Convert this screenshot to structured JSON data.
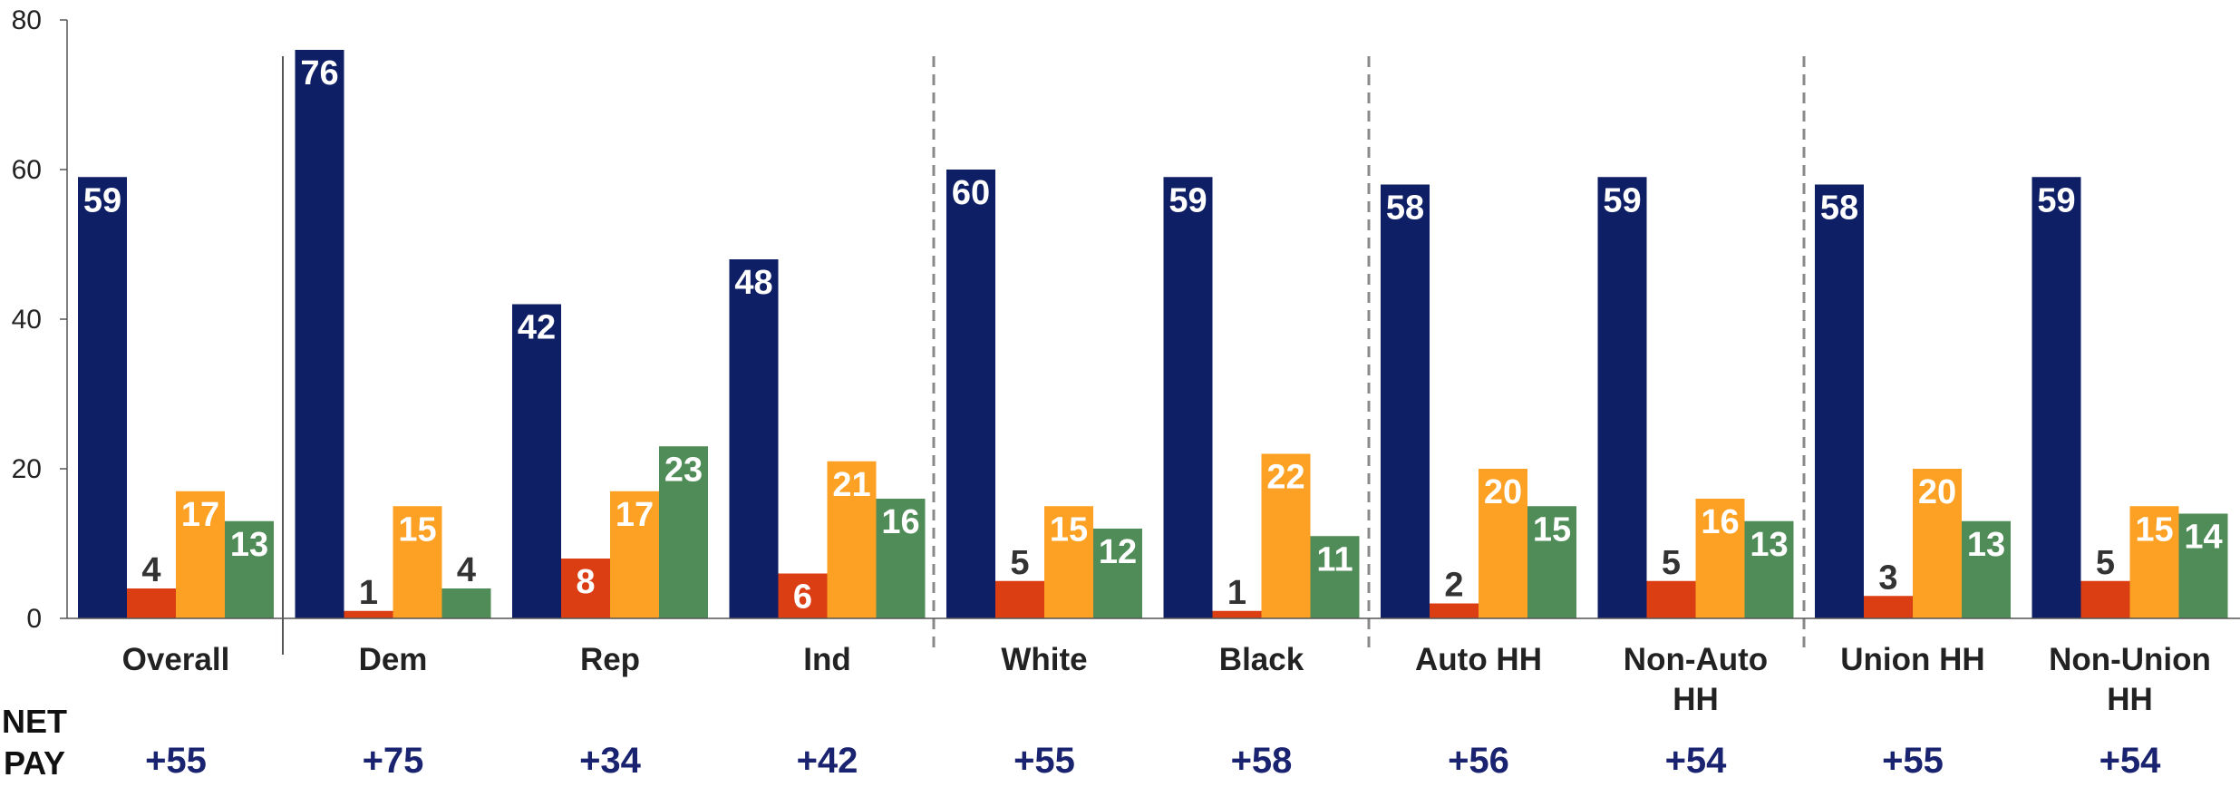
{
  "chart_data": {
    "type": "bar",
    "ylim": [
      0,
      80
    ],
    "yticks": [
      "0",
      "20",
      "40",
      "60",
      "80"
    ],
    "categories": [
      [
        "Overall"
      ],
      [
        "Dem"
      ],
      [
        "Rep"
      ],
      [
        "Ind"
      ],
      [
        "White"
      ],
      [
        "Black"
      ],
      [
        "Auto HH"
      ],
      [
        "Non-Auto",
        "HH"
      ],
      [
        "Union HH"
      ],
      [
        "Non-Union",
        "HH"
      ]
    ],
    "series": [
      {
        "color": "#0f1f66",
        "label_color": "#ffffff",
        "values": [
          59,
          76,
          42,
          48,
          60,
          59,
          58,
          59,
          58,
          59
        ]
      },
      {
        "color": "#dc3e14",
        "label_color": "#ffffff",
        "values": [
          4,
          1,
          8,
          6,
          5,
          1,
          2,
          5,
          3,
          5
        ]
      },
      {
        "color": "#fda124",
        "label_color": "#ffffff",
        "values": [
          17,
          15,
          17,
          21,
          15,
          22,
          20,
          16,
          20,
          15
        ]
      },
      {
        "color": "#508c57",
        "label_color": "#ffffff",
        "values": [
          13,
          4,
          23,
          16,
          12,
          11,
          15,
          13,
          13,
          14
        ]
      }
    ],
    "net_label": [
      "NET",
      "PAY"
    ],
    "net_values": [
      "+55",
      "+75",
      "+34",
      "+42",
      "+55",
      "+58",
      "+56",
      "+54",
      "+55",
      "+54"
    ],
    "dark_label_color": "#333333",
    "net_color": "#1a2370"
  }
}
